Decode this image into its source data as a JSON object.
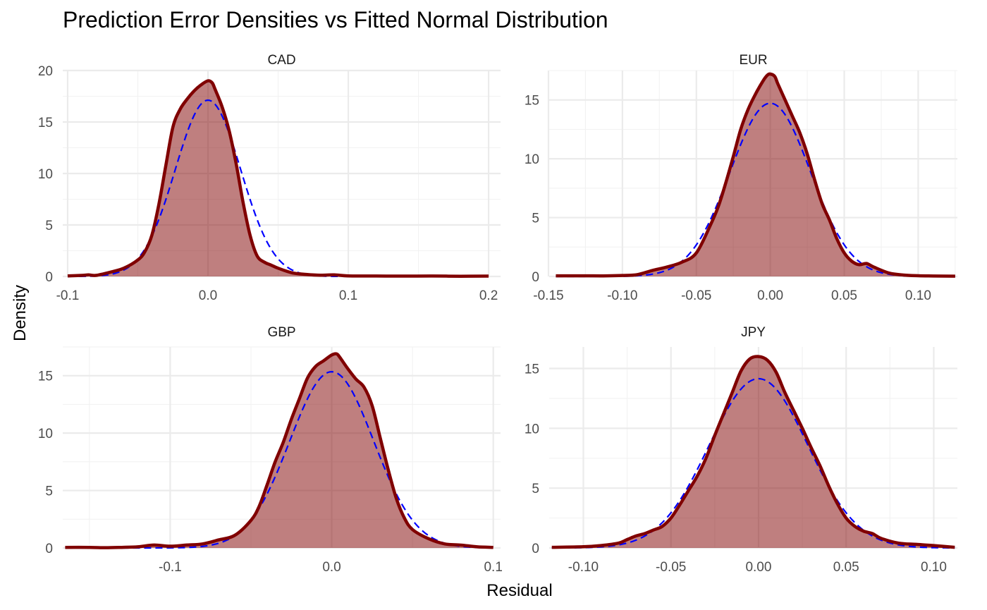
{
  "chart_data": {
    "type": "area",
    "title": "Prediction Error Densities vs Fitted Normal Distribution",
    "xlabel": "Residual",
    "ylabel": "Density",
    "grid": true,
    "colors": {
      "density": "#800000",
      "normal": "#0000ff"
    },
    "panels": [
      {
        "name": "CAD",
        "xlim": [
          -0.1035,
          0.2085
        ],
        "ylim": [
          0,
          20
        ],
        "x_ticks": [
          -0.1,
          0.0,
          0.1,
          0.2
        ],
        "x_tick_labels": [
          "-0.1",
          "0.0",
          "0.1",
          "0.2"
        ],
        "y_ticks": [
          0,
          5,
          10,
          15,
          20
        ],
        "y_tick_labels": [
          "0",
          "5",
          "10",
          "15",
          "20"
        ],
        "density": {
          "x": [
            -0.1,
            -0.09,
            -0.085,
            -0.08,
            -0.07,
            -0.06,
            -0.05,
            -0.045,
            -0.04,
            -0.035,
            -0.03,
            -0.025,
            -0.02,
            -0.015,
            -0.01,
            -0.005,
            0.0,
            0.003,
            0.005,
            0.01,
            0.015,
            0.02,
            0.025,
            0.03,
            0.035,
            0.04,
            0.045,
            0.05,
            0.06,
            0.07,
            0.08,
            0.09,
            0.1,
            0.12,
            0.14,
            0.16,
            0.18,
            0.2
          ],
          "y": [
            0.05,
            0.1,
            0.15,
            0.1,
            0.4,
            0.8,
            1.6,
            2.4,
            4.0,
            7.0,
            10.8,
            14.5,
            16.2,
            17.2,
            18.0,
            18.6,
            19.0,
            18.8,
            18.2,
            16.5,
            14.2,
            11.0,
            7.2,
            4.0,
            2.0,
            1.4,
            1.1,
            0.8,
            0.35,
            0.2,
            0.12,
            0.15,
            0.05,
            0.04,
            0.03,
            0.04,
            0.02,
            0.03
          ]
        },
        "normal": {
          "mean": 0.0,
          "sd": 0.0233
        }
      },
      {
        "name": "EUR",
        "xlim": [
          -0.1495,
          0.1265
        ],
        "ylim": [
          0,
          17.5
        ],
        "x_ticks": [
          -0.15,
          -0.1,
          -0.05,
          0.0,
          0.05,
          0.1
        ],
        "x_tick_labels": [
          "-0.15",
          "-0.10",
          "-0.05",
          "0.00",
          "0.05",
          "0.10"
        ],
        "y_ticks": [
          0,
          5,
          10,
          15
        ],
        "y_tick_labels": [
          "0",
          "5",
          "10",
          "15"
        ],
        "density": {
          "x": [
            -0.145,
            -0.12,
            -0.11,
            -0.1,
            -0.09,
            -0.08,
            -0.07,
            -0.06,
            -0.05,
            -0.04,
            -0.035,
            -0.03,
            -0.025,
            -0.02,
            -0.015,
            -0.01,
            -0.005,
            -0.002,
            0.0,
            0.003,
            0.005,
            0.01,
            0.015,
            0.02,
            0.025,
            0.03,
            0.035,
            0.04,
            0.045,
            0.05,
            0.055,
            0.06,
            0.065,
            0.07,
            0.08,
            0.09,
            0.1,
            0.11,
            0.125
          ],
          "y": [
            0.05,
            0.05,
            0.05,
            0.08,
            0.15,
            0.5,
            0.8,
            1.2,
            2.0,
            4.5,
            6.0,
            8.0,
            10.2,
            12.5,
            14.2,
            15.5,
            16.6,
            17.1,
            17.2,
            17.0,
            16.4,
            15.0,
            13.6,
            12.2,
            10.4,
            8.2,
            6.2,
            4.8,
            3.2,
            2.0,
            1.3,
            1.0,
            1.1,
            0.8,
            0.3,
            0.12,
            0.06,
            0.04,
            0.02
          ]
        },
        "normal": {
          "mean": 0.0,
          "sd": 0.0271
        }
      },
      {
        "name": "GBP",
        "xlim": [
          -0.1665,
          0.1045
        ],
        "ylim": [
          0,
          17.5
        ],
        "x_ticks": [
          -0.1,
          0.0,
          0.1
        ],
        "x_tick_labels": [
          "-0.1",
          "0.0",
          "0.1"
        ],
        "y_ticks": [
          0,
          5,
          10,
          15
        ],
        "y_tick_labels": [
          "0",
          "5",
          "10",
          "15"
        ],
        "density": {
          "x": [
            -0.165,
            -0.15,
            -0.14,
            -0.13,
            -0.12,
            -0.11,
            -0.1,
            -0.09,
            -0.08,
            -0.07,
            -0.06,
            -0.05,
            -0.045,
            -0.04,
            -0.035,
            -0.03,
            -0.025,
            -0.02,
            -0.015,
            -0.01,
            -0.005,
            0.0,
            0.003,
            0.005,
            0.01,
            0.015,
            0.02,
            0.025,
            0.03,
            0.035,
            0.04,
            0.045,
            0.05,
            0.06,
            0.07,
            0.08,
            0.09,
            0.1
          ],
          "y": [
            0.05,
            0.05,
            0.02,
            0.05,
            0.1,
            0.25,
            0.15,
            0.25,
            0.35,
            0.7,
            1.1,
            2.4,
            3.6,
            5.5,
            7.5,
            9.2,
            11.2,
            13.0,
            14.8,
            15.8,
            16.3,
            16.8,
            16.9,
            16.6,
            15.6,
            14.7,
            14.0,
            12.4,
            9.6,
            6.8,
            4.3,
            2.6,
            1.6,
            0.8,
            0.35,
            0.25,
            0.1,
            0.05
          ]
        },
        "normal": {
          "mean": 0.0,
          "sd": 0.026
        }
      },
      {
        "name": "JPY",
        "xlim": [
          -0.1195,
          0.1135
        ],
        "ylim": [
          0,
          16.8
        ],
        "x_ticks": [
          -0.1,
          -0.05,
          0.0,
          0.05,
          0.1
        ],
        "x_tick_labels": [
          "-0.10",
          "-0.05",
          "0.00",
          "0.05",
          "0.10"
        ],
        "y_ticks": [
          0,
          5,
          10,
          15
        ],
        "y_tick_labels": [
          "0",
          "5",
          "10",
          "15"
        ],
        "density": {
          "x": [
            -0.118,
            -0.1,
            -0.09,
            -0.08,
            -0.075,
            -0.07,
            -0.065,
            -0.06,
            -0.055,
            -0.05,
            -0.045,
            -0.04,
            -0.035,
            -0.03,
            -0.025,
            -0.02,
            -0.015,
            -0.01,
            -0.005,
            0.0,
            0.005,
            0.01,
            0.015,
            0.02,
            0.025,
            0.03,
            0.035,
            0.04,
            0.045,
            0.05,
            0.055,
            0.06,
            0.065,
            0.07,
            0.08,
            0.09,
            0.1,
            0.112
          ],
          "y": [
            0.05,
            0.1,
            0.2,
            0.4,
            0.7,
            1.0,
            1.2,
            1.5,
            1.8,
            2.5,
            3.6,
            4.8,
            6.0,
            7.5,
            9.4,
            11.2,
            13.0,
            14.8,
            15.8,
            16.0,
            15.7,
            14.7,
            13.0,
            11.5,
            10.0,
            8.4,
            6.9,
            5.2,
            3.7,
            2.5,
            1.8,
            1.4,
            1.2,
            0.8,
            0.4,
            0.3,
            0.2,
            0.05
          ]
        },
        "normal": {
          "mean": 0.0,
          "sd": 0.0282
        }
      }
    ]
  }
}
